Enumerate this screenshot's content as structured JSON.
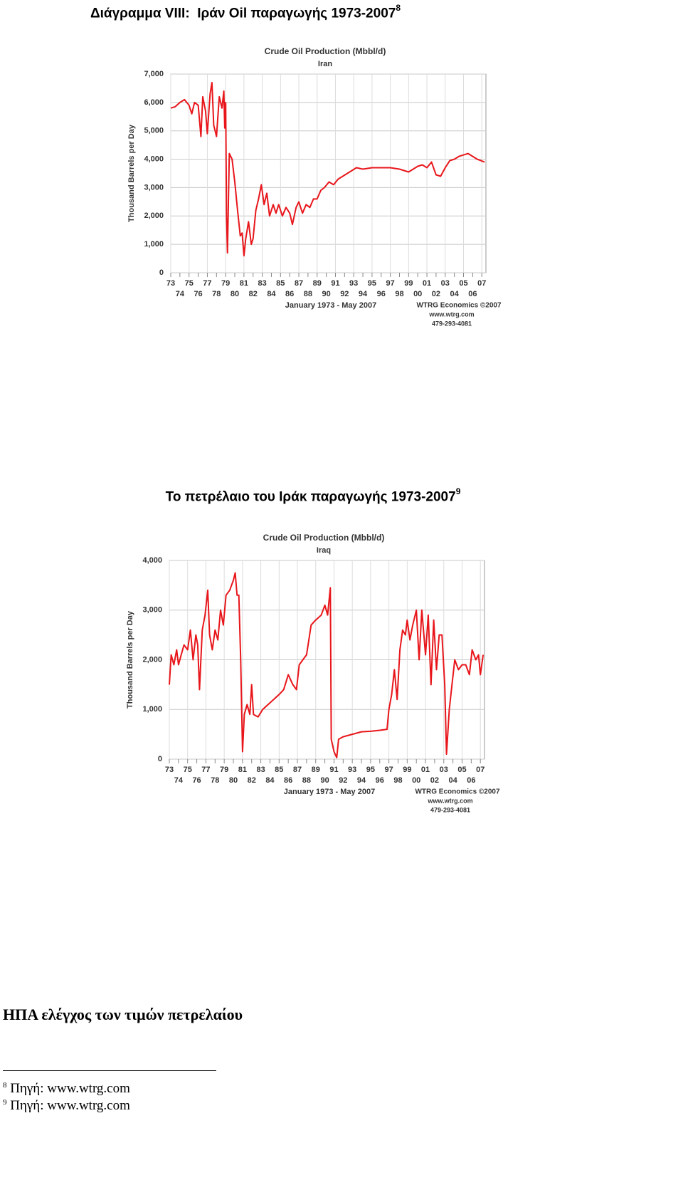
{
  "headings": [
    {
      "text": "Διάγραμμα VIII:  Ιράν Oil παραγωγής 1973-2007",
      "note": 8
    },
    {
      "text": "Το πετρέλαιο του Ιράκ παραγωγής 1973-2007",
      "note": 9
    },
    {
      "text": "ΗΠΑ ελέγχος των τιμών πετρελαίου"
    }
  ],
  "chart_data": [
    {
      "type": "line",
      "title": "Crude Oil Production (Mbbl/d)",
      "subtitle": "Iran",
      "y_label": "Thousand Barrels per Day",
      "x_label": "January 1973 - May 2007",
      "credits": [
        "WTRG Economics ©2007",
        "www.wtrg.com",
        "479-293-4081"
      ],
      "color": "#e8161b",
      "grid": true,
      "xlim": [
        1973,
        2007.45
      ],
      "ylim": [
        0,
        7000
      ],
      "yticks": [
        0,
        {
          "value": 1000,
          "label": "1,000"
        },
        {
          "value": 2000,
          "label": "2,000"
        },
        {
          "value": 3000,
          "label": "3,000"
        },
        {
          "value": 4000,
          "label": "4,000"
        },
        {
          "value": 5000,
          "label": "5,000"
        },
        {
          "value": 6000,
          "label": "6,000"
        },
        {
          "value": 7000,
          "label": "7,000"
        }
      ],
      "xticks": [
        {
          "value": 1973,
          "label": "73"
        },
        {
          "value": 1974,
          "label": "74"
        },
        {
          "value": 1975,
          "label": "75"
        },
        {
          "value": 1976,
          "label": "76"
        },
        {
          "value": 1977,
          "label": "77"
        },
        {
          "value": 1978,
          "label": "78"
        },
        {
          "value": 1979,
          "label": "79"
        },
        {
          "value": 1980,
          "label": "80"
        },
        {
          "value": 1981,
          "label": "81"
        },
        {
          "value": 1982,
          "label": "82"
        },
        {
          "value": 1983,
          "label": "83"
        },
        {
          "value": 1984,
          "label": "84"
        },
        {
          "value": 1985,
          "label": "85"
        },
        {
          "value": 1986,
          "label": "86"
        },
        {
          "value": 1987,
          "label": "87"
        },
        {
          "value": 1988,
          "label": "88"
        },
        {
          "value": 1989,
          "label": "89"
        },
        {
          "value": 1990,
          "label": "90"
        },
        {
          "value": 1991,
          "label": "91"
        },
        {
          "value": 1992,
          "label": "92"
        },
        {
          "value": 1993,
          "label": "93"
        },
        {
          "value": 1994,
          "label": "94"
        },
        {
          "value": 1995,
          "label": "95"
        },
        {
          "value": 1996,
          "label": "96"
        },
        {
          "value": 1997,
          "label": "97"
        },
        {
          "value": 1998,
          "label": "98"
        },
        {
          "value": 1999,
          "label": "99"
        },
        {
          "value": 2000,
          "label": "00"
        },
        {
          "value": 2001,
          "label": "01"
        },
        {
          "value": 2002,
          "label": "02"
        },
        {
          "value": 2003,
          "label": "03"
        },
        {
          "value": 2004,
          "label": "04"
        },
        {
          "value": 2005,
          "label": "05"
        },
        {
          "value": 2006,
          "label": "06"
        },
        {
          "value": 2007,
          "label": "07"
        }
      ],
      "x": [
        1973.0,
        1973.5,
        1974.0,
        1974.5,
        1975.0,
        1975.3,
        1975.6,
        1976.0,
        1976.3,
        1976.5,
        1976.8,
        1977.0,
        1977.3,
        1977.5,
        1977.7,
        1978.0,
        1978.3,
        1978.6,
        1978.8,
        1978.9,
        1979.0,
        1979.1,
        1979.2,
        1979.4,
        1979.7,
        1980.0,
        1980.3,
        1980.6,
        1980.8,
        1981.0,
        1981.2,
        1981.5,
        1981.8,
        1982.0,
        1982.3,
        1982.6,
        1982.9,
        1983.2,
        1983.5,
        1983.8,
        1984.2,
        1984.5,
        1984.8,
        1985.2,
        1985.6,
        1986.0,
        1986.3,
        1986.7,
        1987.0,
        1987.4,
        1987.8,
        1988.2,
        1988.6,
        1989.0,
        1989.4,
        1989.8,
        1990.3,
        1990.8,
        1991.3,
        1991.8,
        1992.3,
        1992.8,
        1993.3,
        1994.0,
        1995.0,
        1996.0,
        1997.0,
        1998.0,
        1999.0,
        2000.0,
        2000.5,
        2001.0,
        2001.5,
        2002.0,
        2002.5,
        2003.0,
        2003.5,
        2004.0,
        2004.5,
        2005.0,
        2005.5,
        2006.0,
        2006.5,
        2007.3
      ],
      "values": [
        5800,
        5850,
        6000,
        6100,
        5900,
        5600,
        6000,
        5900,
        4800,
        6200,
        5700,
        4900,
        6300,
        6700,
        5200,
        4800,
        6200,
        5800,
        6400,
        5100,
        6000,
        2000,
        700,
        4200,
        4000,
        3200,
        2200,
        1300,
        1400,
        600,
        1200,
        1800,
        1000,
        1200,
        2200,
        2600,
        3100,
        2400,
        2800,
        2000,
        2400,
        2100,
        2400,
        2000,
        2300,
        2100,
        1700,
        2300,
        2500,
        2100,
        2400,
        2300,
        2600,
        2600,
        2900,
        3000,
        3200,
        3100,
        3300,
        3400,
        3500,
        3600,
        3700,
        3650,
        3700,
        3700,
        3700,
        3650,
        3550,
        3750,
        3800,
        3700,
        3900,
        3450,
        3400,
        3700,
        3950,
        4000,
        4100,
        4150,
        4200,
        4100,
        4000,
        3900
      ]
    },
    {
      "type": "line",
      "title": "Crude Oil Production (Mbbl/d)",
      "subtitle": "Iraq",
      "y_label": "Thousand Barrels per Day",
      "x_label": "January 1973 - May 2007",
      "credits": [
        "WTRG Economics ©2007",
        "www.wtrg.com",
        "479-293-4081"
      ],
      "color": "#e8161b",
      "grid": true,
      "xlim": [
        1973,
        2007.45
      ],
      "ylim": [
        0,
        4000
      ],
      "yticks": [
        0,
        {
          "value": 1000,
          "label": "1,000"
        },
        {
          "value": 2000,
          "label": "2,000"
        },
        {
          "value": 3000,
          "label": "3,000"
        },
        {
          "value": 4000,
          "label": "4,000"
        }
      ],
      "xticks": [
        {
          "value": 1973,
          "label": "73"
        },
        {
          "value": 1974,
          "label": "74"
        },
        {
          "value": 1975,
          "label": "75"
        },
        {
          "value": 1976,
          "label": "76"
        },
        {
          "value": 1977,
          "label": "77"
        },
        {
          "value": 1978,
          "label": "78"
        },
        {
          "value": 1979,
          "label": "79"
        },
        {
          "value": 1980,
          "label": "80"
        },
        {
          "value": 1981,
          "label": "81"
        },
        {
          "value": 1982,
          "label": "82"
        },
        {
          "value": 1983,
          "label": "83"
        },
        {
          "value": 1984,
          "label": "84"
        },
        {
          "value": 1985,
          "label": "85"
        },
        {
          "value": 1986,
          "label": "86"
        },
        {
          "value": 1987,
          "label": "87"
        },
        {
          "value": 1988,
          "label": "88"
        },
        {
          "value": 1989,
          "label": "89"
        },
        {
          "value": 1990,
          "label": "90"
        },
        {
          "value": 1991,
          "label": "91"
        },
        {
          "value": 1992,
          "label": "92"
        },
        {
          "value": 1993,
          "label": "93"
        },
        {
          "value": 1994,
          "label": "94"
        },
        {
          "value": 1995,
          "label": "95"
        },
        {
          "value": 1996,
          "label": "96"
        },
        {
          "value": 1997,
          "label": "97"
        },
        {
          "value": 1998,
          "label": "98"
        },
        {
          "value": 1999,
          "label": "99"
        },
        {
          "value": 2000,
          "label": "00"
        },
        {
          "value": 2001,
          "label": "01"
        },
        {
          "value": 2002,
          "label": "02"
        },
        {
          "value": 2003,
          "label": "03"
        },
        {
          "value": 2004,
          "label": "04"
        },
        {
          "value": 2005,
          "label": "05"
        },
        {
          "value": 2006,
          "label": "06"
        },
        {
          "value": 2007,
          "label": "07"
        }
      ],
      "x": [
        1973.0,
        1973.2,
        1973.5,
        1973.8,
        1974.0,
        1974.3,
        1974.6,
        1975.0,
        1975.3,
        1975.6,
        1975.9,
        1976.1,
        1976.3,
        1976.6,
        1976.9,
        1977.2,
        1977.4,
        1977.7,
        1978.0,
        1978.3,
        1978.6,
        1978.9,
        1979.2,
        1979.6,
        1980.0,
        1980.2,
        1980.4,
        1980.6,
        1980.8,
        1981.0,
        1981.2,
        1981.5,
        1981.8,
        1982.0,
        1982.2,
        1982.7,
        1983.2,
        1983.8,
        1984.4,
        1985.0,
        1985.5,
        1986.0,
        1986.5,
        1986.9,
        1987.2,
        1987.6,
        1988.0,
        1988.5,
        1989.0,
        1989.6,
        1990.0,
        1990.3,
        1990.6,
        1990.7,
        1991.0,
        1991.3,
        1991.5,
        1992.0,
        1993.0,
        1994.0,
        1995.0,
        1996.0,
        1996.8,
        1997.0,
        1997.3,
        1997.6,
        1997.9,
        1998.2,
        1998.5,
        1998.8,
        1999.0,
        1999.3,
        1999.6,
        2000.0,
        2000.3,
        2000.6,
        2001.0,
        2001.3,
        2001.6,
        2001.9,
        2002.2,
        2002.5,
        2002.8,
        2003.1,
        2003.3,
        2003.6,
        2003.9,
        2004.2,
        2004.6,
        2005.0,
        2005.4,
        2005.8,
        2006.1,
        2006.5,
        2006.8,
        2007.0,
        2007.3
      ],
      "values": [
        1500,
        2100,
        1900,
        2200,
        1900,
        2100,
        2300,
        2200,
        2600,
        2000,
        2500,
        2300,
        1400,
        2600,
        2900,
        3400,
        2500,
        2200,
        2600,
        2400,
        3000,
        2700,
        3300,
        3400,
        3600,
        3750,
        3300,
        3300,
        2000,
        150,
        900,
        1100,
        900,
        1500,
        900,
        850,
        1000,
        1100,
        1200,
        1300,
        1400,
        1700,
        1500,
        1400,
        1900,
        2000,
        2100,
        2700,
        2800,
        2900,
        3100,
        2900,
        3450,
        400,
        150,
        30,
        400,
        450,
        500,
        550,
        560,
        580,
        600,
        1000,
        1300,
        1800,
        1200,
        2200,
        2600,
        2500,
        2800,
        2400,
        2700,
        3000,
        2000,
        3000,
        2100,
        2900,
        1500,
        2800,
        1800,
        2500,
        2500,
        1500,
        100,
        1000,
        1500,
        2000,
        1800,
        1900,
        1900,
        1700,
        2200,
        2000,
        2100,
        1700,
        2100
      ]
    }
  ],
  "footnotes": [
    {
      "number": 8,
      "text": "Πηγή: www.wtrg.com"
    },
    {
      "number": 9,
      "text": "Πηγή: www.wtrg.com"
    }
  ]
}
